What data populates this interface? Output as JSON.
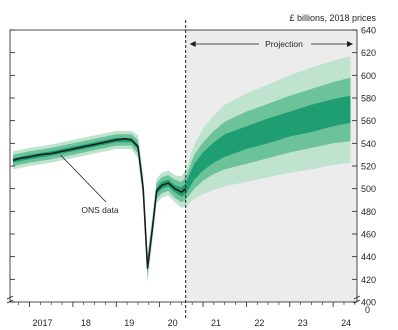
{
  "chart_data": {
    "type": "area",
    "title": "",
    "unit_label": "£ billions, 2018 prices",
    "projection_label": "Projection",
    "annotation": "ONS data",
    "x_tick_labels": [
      "2017",
      "18",
      "19",
      "20",
      "21",
      "22",
      "23",
      "24"
    ],
    "x_ticks": [
      2017,
      2018,
      2019,
      2020,
      2021,
      2022,
      2023,
      2024
    ],
    "xlim": [
      2016.55,
      2024.55
    ],
    "projection_start": 2020.6,
    "ylim": [
      400,
      640
    ],
    "y_ticks": [
      400,
      420,
      440,
      460,
      480,
      500,
      520,
      540,
      560,
      580,
      600,
      620,
      640
    ],
    "y_tick_labels": [
      "400",
      "420",
      "440",
      "460",
      "480",
      "500",
      "520",
      "540",
      "560",
      "580",
      "600",
      "620",
      "640"
    ],
    "axis_break_label": "0",
    "grid": false,
    "colors": {
      "outer_band": "#bfe3cf",
      "middle_band": "#6cc39a",
      "inner_band": "#1f9e72",
      "line": "#1c1c1c",
      "projection_shading": "#ececec"
    },
    "series": [
      {
        "name": "ONS data",
        "x": [
          2016.62,
          2016.8,
          2017.0,
          2017.25,
          2017.5,
          2017.75,
          2018.0,
          2018.25,
          2018.5,
          2018.75,
          2019.0,
          2019.2,
          2019.35,
          2019.5,
          2019.62,
          2019.72,
          2019.85,
          2019.93,
          2020.05,
          2020.2,
          2020.35,
          2020.5,
          2020.6
        ],
        "y": [
          525,
          527,
          528,
          530,
          531,
          533,
          535,
          537,
          539,
          541,
          543,
          544,
          543,
          537,
          500,
          430,
          470,
          498,
          503,
          505,
          500,
          497,
          500
        ]
      }
    ],
    "fan": {
      "x": [
        2016.62,
        2017.0,
        2017.5,
        2018.0,
        2018.5,
        2019.0,
        2019.35,
        2019.5,
        2019.62,
        2019.72,
        2019.85,
        2019.93,
        2020.05,
        2020.2,
        2020.35,
        2020.5,
        2020.6,
        2020.8,
        2021.0,
        2021.25,
        2021.5,
        2022.0,
        2022.5,
        2023.0,
        2023.5,
        2024.0,
        2024.4
      ],
      "center": [
        525,
        528,
        531,
        535,
        539,
        543,
        543,
        537,
        500,
        430,
        470,
        498,
        503,
        505,
        500,
        497,
        500,
        515,
        524,
        532,
        538,
        545,
        551,
        557,
        562,
        567,
        570
      ],
      "inner_half_width": [
        2,
        2,
        2,
        2,
        2,
        2,
        2,
        2,
        3,
        3,
        3,
        3,
        3,
        3,
        3,
        4,
        5,
        7,
        8,
        9,
        10,
        10,
        11,
        11,
        12,
        12,
        12
      ],
      "middle_half_width": [
        5,
        5,
        5,
        5,
        5,
        5,
        5,
        6,
        7,
        7,
        7,
        7,
        7,
        7,
        8,
        9,
        10,
        15,
        17,
        19,
        21,
        23,
        24,
        25,
        26,
        27,
        28
      ],
      "outer_half_width": [
        8,
        8,
        8,
        8,
        8,
        8,
        8,
        10,
        12,
        13,
        12,
        11,
        11,
        11,
        12,
        14,
        16,
        24,
        29,
        33,
        36,
        39,
        41,
        43,
        45,
        46,
        47
      ]
    }
  }
}
